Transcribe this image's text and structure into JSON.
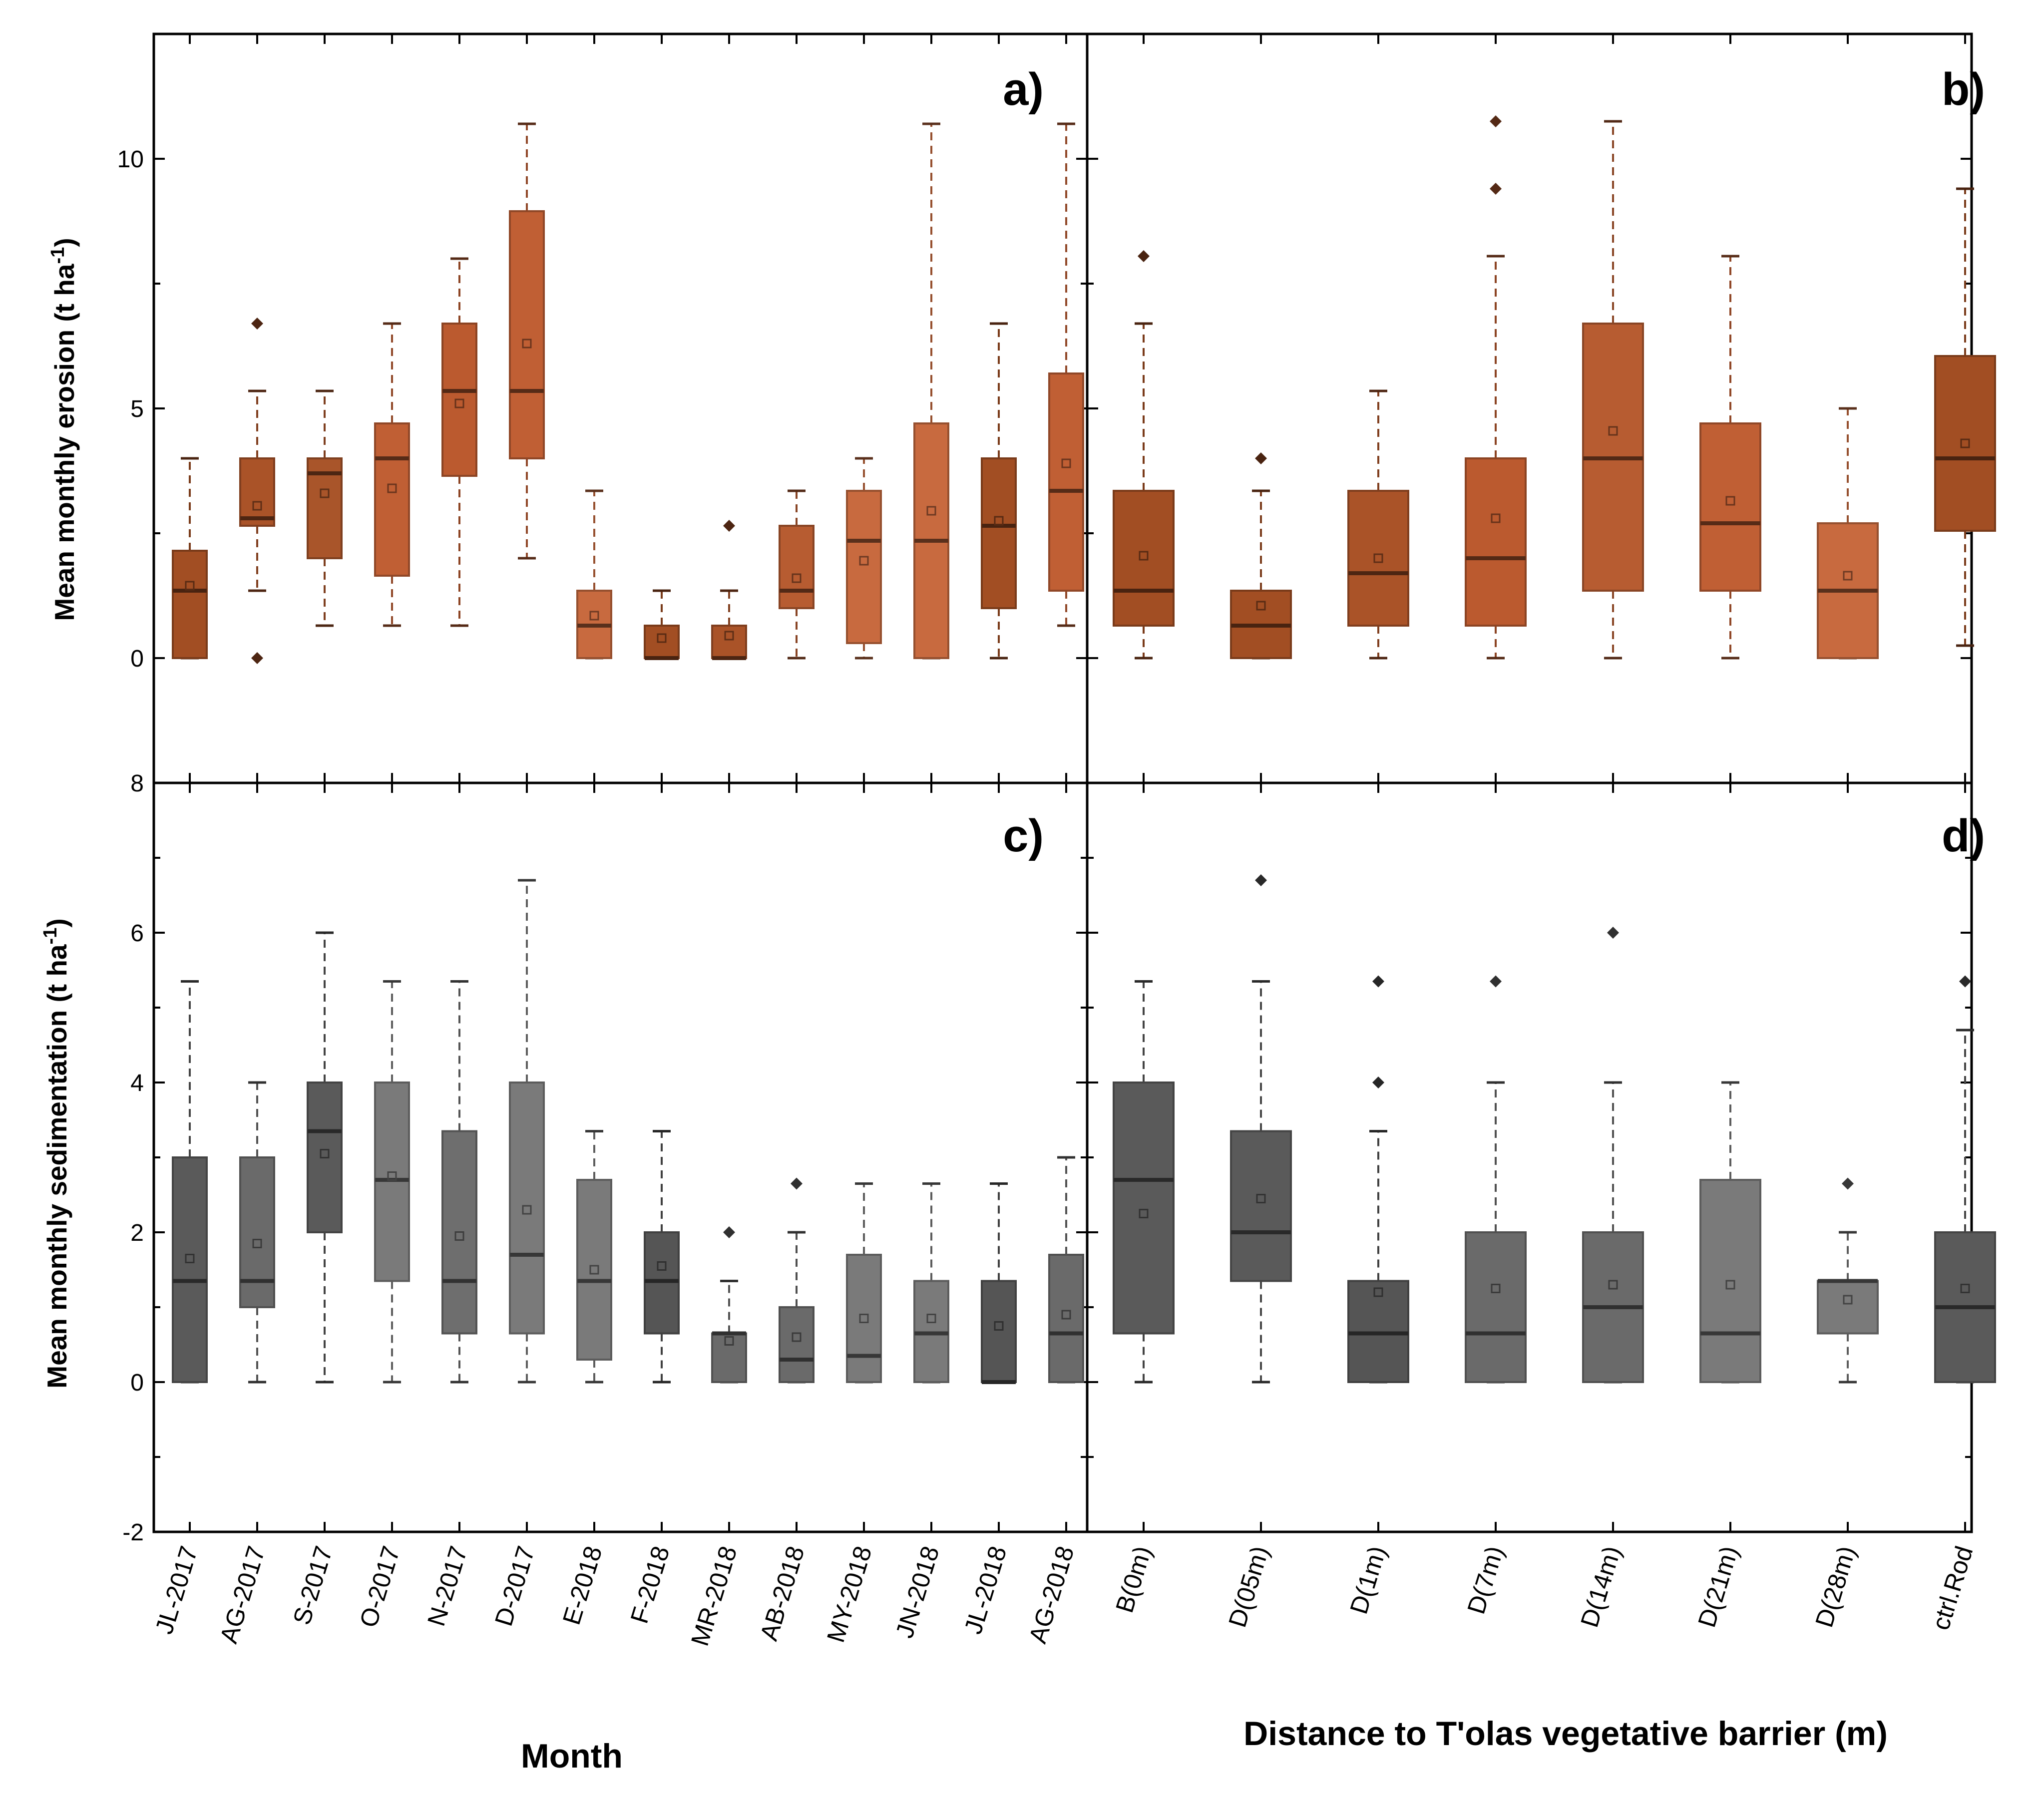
{
  "chart_data": [
    {
      "type": "box",
      "panel_label": "a)",
      "ylabel": "Mean monthly erosion (t ha",
      "ylabel_sup": "-1",
      "ylabel_close": ")",
      "ylim": [
        -2.5,
        12.5
      ],
      "yticks": [
        0,
        5,
        10
      ],
      "xlabel": "",
      "categories": [
        "JL-2017",
        "AG-2017",
        "S-2017",
        "O-2017",
        "N-2017",
        "D-2017",
        "E-2018",
        "F-2018",
        "MR-2018",
        "AB-2018",
        "MY-2018",
        "JN-2018",
        "JL-2018",
        "AG-2018"
      ],
      "boxes": [
        {
          "min": 0,
          "q1": 0,
          "median": 1.35,
          "q3": 2.15,
          "max": 4.0,
          "mean": 1.45,
          "outliers": [],
          "color": "#a24e23"
        },
        {
          "min": 1.35,
          "q1": 2.65,
          "median": 2.8,
          "q3": 4.0,
          "max": 5.35,
          "mean": 3.05,
          "outliers": [
            6.7,
            0
          ],
          "color": "#aa5328"
        },
        {
          "min": 0.65,
          "q1": 2.0,
          "median": 3.7,
          "q3": 4.0,
          "max": 5.35,
          "mean": 3.3,
          "outliers": [],
          "color": "#a9552a"
        },
        {
          "min": 0.65,
          "q1": 1.65,
          "median": 4.0,
          "q3": 4.7,
          "max": 6.7,
          "mean": 3.4,
          "outliers": [],
          "color": "#c05f34"
        },
        {
          "min": 0.65,
          "q1": 3.65,
          "median": 5.35,
          "q3": 6.7,
          "max": 8.0,
          "mean": 5.1,
          "outliers": [],
          "color": "#bb5a2f"
        },
        {
          "min": 2.0,
          "q1": 4.0,
          "median": 5.35,
          "q3": 8.95,
          "max": 10.7,
          "mean": 6.3,
          "outliers": [],
          "color": "#c05f34"
        },
        {
          "min": 0,
          "q1": 0,
          "median": 0.65,
          "q3": 1.35,
          "max": 3.35,
          "mean": 0.85,
          "outliers": [],
          "color": "#c86a3f"
        },
        {
          "min": 0,
          "q1": 0,
          "median": 0,
          "q3": 0.65,
          "max": 1.35,
          "mean": 0.4,
          "outliers": [],
          "color": "#a24e23"
        },
        {
          "min": 0,
          "q1": 0,
          "median": 0,
          "q3": 0.65,
          "max": 1.35,
          "mean": 0.45,
          "outliers": [
            2.65
          ],
          "color": "#aa5328"
        },
        {
          "min": 0,
          "q1": 1.0,
          "median": 1.35,
          "q3": 2.65,
          "max": 3.35,
          "mean": 1.6,
          "outliers": [],
          "color": "#b75c31"
        },
        {
          "min": 0,
          "q1": 0.3,
          "median": 2.35,
          "q3": 3.35,
          "max": 4.0,
          "mean": 1.95,
          "outliers": [],
          "color": "#c86a3f"
        },
        {
          "min": 0,
          "q1": 0,
          "median": 2.35,
          "q3": 4.7,
          "max": 10.7,
          "mean": 2.95,
          "outliers": [],
          "color": "#c86a3f"
        },
        {
          "min": 0,
          "q1": 1.0,
          "median": 2.65,
          "q3": 4.0,
          "max": 6.7,
          "mean": 2.75,
          "outliers": [],
          "color": "#a24e23"
        },
        {
          "min": 0.65,
          "q1": 1.35,
          "median": 3.35,
          "q3": 5.7,
          "max": 10.7,
          "mean": 3.9,
          "outliers": [],
          "color": "#c05f34"
        }
      ]
    },
    {
      "type": "box",
      "panel_label": "b)",
      "ylim": [
        -2.5,
        12.5
      ],
      "yticks": [
        0,
        5,
        10
      ],
      "categories": [
        "B(0m)",
        "D(05m)",
        "D(1m)",
        "D(7m)",
        "D(14m)",
        "D(21m)",
        "D(28m)",
        "ctrl.Rod"
      ],
      "xlabel": "Distance to T'olas vegetative barrier (m)",
      "boxes": [
        {
          "min": 0,
          "q1": 0.65,
          "median": 1.35,
          "q3": 3.35,
          "max": 6.7,
          "mean": 2.05,
          "outliers": [
            8.05
          ],
          "color": "#a24e23"
        },
        {
          "min": 0,
          "q1": 0,
          "median": 0.65,
          "q3": 1.35,
          "max": 3.35,
          "mean": 1.05,
          "outliers": [
            4.0
          ],
          "color": "#a24e23"
        },
        {
          "min": 0,
          "q1": 0.65,
          "median": 1.7,
          "q3": 3.35,
          "max": 5.35,
          "mean": 2.0,
          "outliers": [],
          "color": "#aa5328"
        },
        {
          "min": 0,
          "q1": 0.65,
          "median": 2.0,
          "q3": 4.0,
          "max": 8.05,
          "mean": 2.8,
          "outliers": [
            10.75,
            9.4
          ],
          "color": "#bb5a2f"
        },
        {
          "min": 0,
          "q1": 1.35,
          "median": 4.0,
          "q3": 6.7,
          "max": 10.75,
          "mean": 4.55,
          "outliers": [],
          "color": "#b75c31"
        },
        {
          "min": 0,
          "q1": 1.35,
          "median": 2.7,
          "q3": 4.7,
          "max": 8.05,
          "mean": 3.15,
          "outliers": [],
          "color": "#c05f34"
        },
        {
          "min": 0,
          "q1": 0,
          "median": 1.35,
          "q3": 2.7,
          "max": 5.0,
          "mean": 1.65,
          "outliers": [],
          "color": "#c86a3f"
        },
        {
          "min": 0.25,
          "q1": 2.55,
          "median": 4.0,
          "q3": 6.05,
          "max": 9.4,
          "mean": 4.3,
          "outliers": [],
          "color": "#a24e23"
        }
      ]
    },
    {
      "type": "box",
      "panel_label": "c)",
      "ylabel": "Mean monthly sedimentation (t ha",
      "ylabel_sup": "-1",
      "ylabel_close": ")",
      "ylim": [
        -2,
        8
      ],
      "yticks": [
        -2,
        0,
        2,
        4,
        6,
        8
      ],
      "xlabel": "Month",
      "categories": [
        "JL-2017",
        "AG-2017",
        "S-2017",
        "O-2017",
        "N-2017",
        "D-2017",
        "E-2018",
        "F-2018",
        "MR-2018",
        "AB-2018",
        "MY-2018",
        "JN-2018",
        "JL-2018",
        "AG-2018"
      ],
      "boxes": [
        {
          "min": 0,
          "q1": 0,
          "median": 1.35,
          "q3": 3.0,
          "max": 5.35,
          "mean": 1.65,
          "outliers": [],
          "color": "#5a5a5a"
        },
        {
          "min": 0,
          "q1": 1.0,
          "median": 1.35,
          "q3": 3.0,
          "max": 4.0,
          "mean": 1.85,
          "outliers": [],
          "color": "#6a6a6a"
        },
        {
          "min": 0,
          "q1": 2.0,
          "median": 3.35,
          "q3": 4.0,
          "max": 6.0,
          "mean": 3.05,
          "outliers": [],
          "color": "#5a5a5a"
        },
        {
          "min": 0,
          "q1": 1.35,
          "median": 2.7,
          "q3": 4.0,
          "max": 5.35,
          "mean": 2.75,
          "outliers": [],
          "color": "#7a7a7a"
        },
        {
          "min": 0,
          "q1": 0.65,
          "median": 1.35,
          "q3": 3.35,
          "max": 5.35,
          "mean": 1.95,
          "outliers": [],
          "color": "#6e6e6e"
        },
        {
          "min": 0,
          "q1": 0.65,
          "median": 1.7,
          "q3": 4.0,
          "max": 6.7,
          "mean": 2.3,
          "outliers": [],
          "color": "#7a7a7a"
        },
        {
          "min": 0,
          "q1": 0.3,
          "median": 1.35,
          "q3": 2.7,
          "max": 3.35,
          "mean": 1.5,
          "outliers": [],
          "color": "#7a7a7a"
        },
        {
          "min": 0,
          "q1": 0.65,
          "median": 1.35,
          "q3": 2.0,
          "max": 3.35,
          "mean": 1.55,
          "outliers": [],
          "color": "#555555"
        },
        {
          "min": 0,
          "q1": 0,
          "median": 0.65,
          "q3": 0.65,
          "max": 1.35,
          "mean": 0.55,
          "outliers": [
            2.0
          ],
          "color": "#6a6a6a"
        },
        {
          "min": 0,
          "q1": 0,
          "median": 0.3,
          "q3": 1.0,
          "max": 2.0,
          "mean": 0.6,
          "outliers": [
            2.65
          ],
          "color": "#6a6a6a"
        },
        {
          "min": 0,
          "q1": 0,
          "median": 0.35,
          "q3": 1.7,
          "max": 2.65,
          "mean": 0.85,
          "outliers": [],
          "color": "#7a7a7a"
        },
        {
          "min": 0,
          "q1": 0,
          "median": 0.65,
          "q3": 1.35,
          "max": 2.65,
          "mean": 0.85,
          "outliers": [],
          "color": "#7a7a7a"
        },
        {
          "min": 0,
          "q1": 0,
          "median": 0,
          "q3": 1.35,
          "max": 2.65,
          "mean": 0.75,
          "outliers": [],
          "color": "#555555"
        },
        {
          "min": 0,
          "q1": 0,
          "median": 0.65,
          "q3": 1.7,
          "max": 3.0,
          "mean": 0.9,
          "outliers": [],
          "color": "#6a6a6a"
        }
      ]
    },
    {
      "type": "box",
      "panel_label": "d)",
      "ylim": [
        -2,
        8
      ],
      "yticks": [
        -2,
        0,
        2,
        4,
        6,
        8
      ],
      "categories": [
        "B(0m)",
        "D(05m)",
        "D(1m)",
        "D(7m)",
        "D(14m)",
        "D(21m)",
        "D(28m)",
        "ctrl.Rod"
      ],
      "boxes": [
        {
          "min": 0,
          "q1": 0.65,
          "median": 2.7,
          "q3": 4.0,
          "max": 5.35,
          "mean": 2.25,
          "outliers": [],
          "color": "#5a5a5a"
        },
        {
          "min": 0,
          "q1": 1.35,
          "median": 2.0,
          "q3": 3.35,
          "max": 5.35,
          "mean": 2.45,
          "outliers": [
            6.7
          ],
          "color": "#5a5a5a"
        },
        {
          "min": 0,
          "q1": 0,
          "median": 0.65,
          "q3": 1.35,
          "max": 3.35,
          "mean": 1.2,
          "outliers": [
            5.35,
            4.0
          ],
          "color": "#555555"
        },
        {
          "min": 0,
          "q1": 0,
          "median": 0.65,
          "q3": 2.0,
          "max": 4.0,
          "mean": 1.25,
          "outliers": [
            5.35
          ],
          "color": "#6a6a6a"
        },
        {
          "min": 0,
          "q1": 0,
          "median": 1.0,
          "q3": 2.0,
          "max": 4.0,
          "mean": 1.3,
          "outliers": [
            6.0
          ],
          "color": "#6a6a6a"
        },
        {
          "min": 0,
          "q1": 0,
          "median": 0.65,
          "q3": 2.7,
          "max": 4.0,
          "mean": 1.3,
          "outliers": [],
          "color": "#7a7a7a"
        },
        {
          "min": 0,
          "q1": 0.65,
          "median": 1.35,
          "q3": 1.35,
          "max": 2.0,
          "mean": 1.1,
          "outliers": [
            2.65
          ],
          "color": "#7a7a7a"
        },
        {
          "min": 0,
          "q1": 0,
          "median": 1.0,
          "q3": 2.0,
          "max": 4.7,
          "mean": 1.25,
          "outliers": [
            5.35
          ],
          "color": "#5a5a5a"
        }
      ]
    }
  ]
}
